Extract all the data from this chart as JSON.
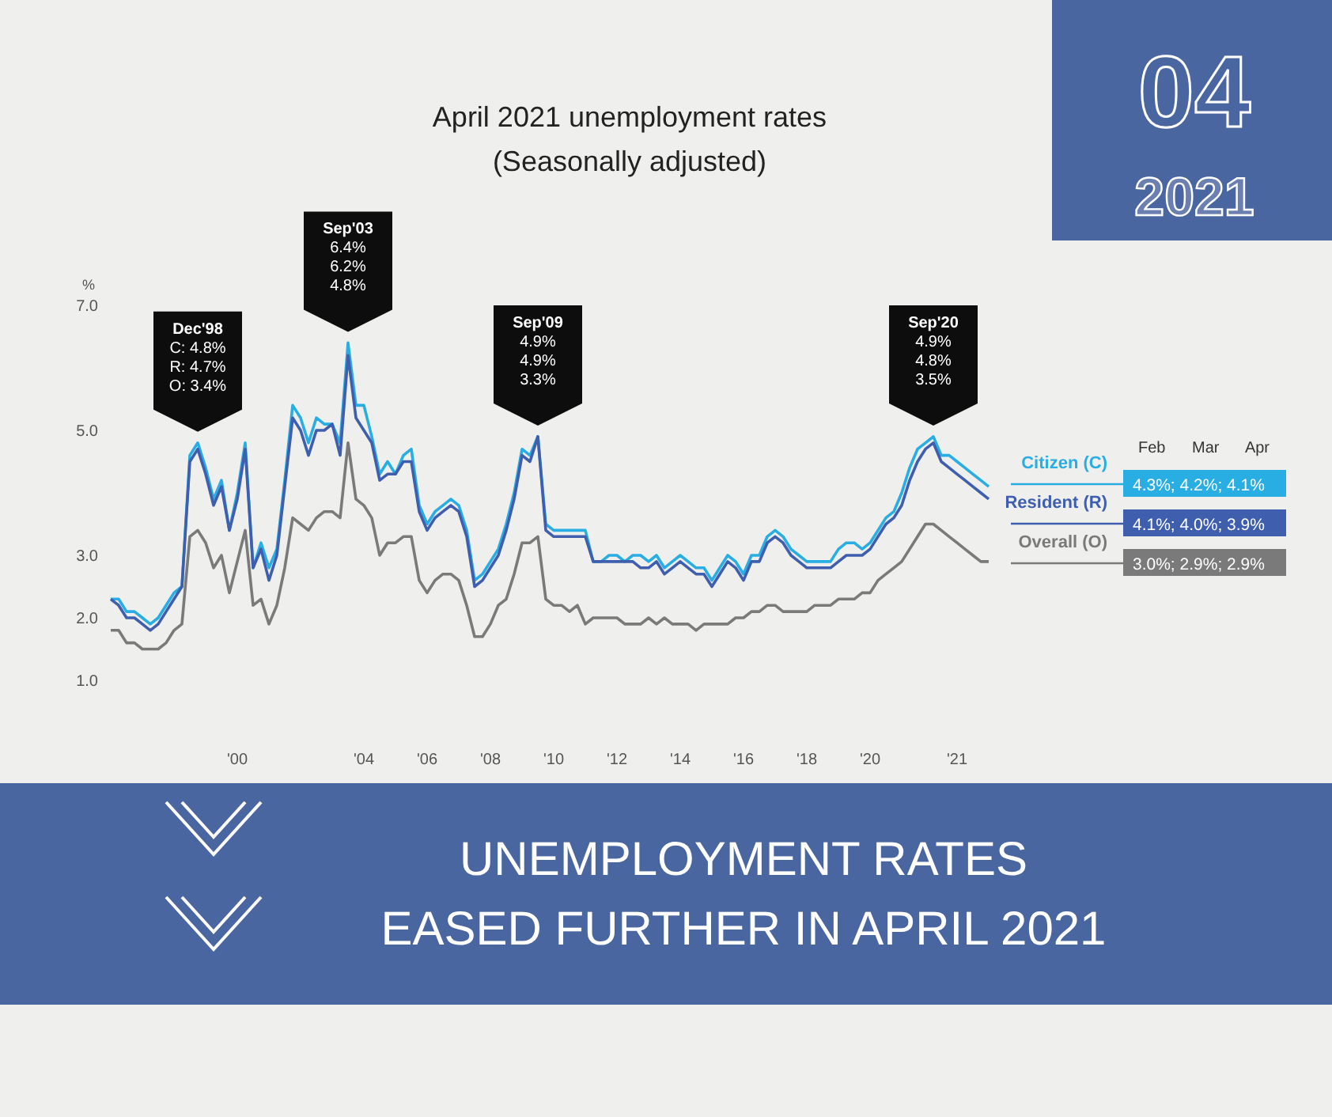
{
  "chart_data": {
    "type": "line",
    "title": "April 2021 unemployment rates\n(Seasonally adjusted)",
    "ylabel": "%",
    "categories": [
      null,
      null,
      null,
      null,
      null,
      null,
      null,
      null,
      null,
      null,
      null,
      null,
      null,
      null,
      null,
      null,
      "'00",
      null,
      null,
      null,
      null,
      null,
      null,
      null,
      null,
      null,
      null,
      null,
      null,
      null,
      null,
      null,
      "'04",
      null,
      null,
      null,
      null,
      null,
      null,
      null,
      "'06",
      null,
      null,
      null,
      null,
      null,
      null,
      null,
      "'08",
      null,
      null,
      null,
      null,
      null,
      null,
      null,
      "'10",
      null,
      null,
      null,
      null,
      null,
      null,
      null,
      "'12",
      null,
      null,
      null,
      null,
      null,
      null,
      null,
      "'14",
      null,
      null,
      null,
      null,
      null,
      null,
      null,
      "'16",
      null,
      null,
      null,
      null,
      null,
      null,
      null,
      "'18",
      null,
      null,
      null,
      null,
      null,
      null,
      null,
      "'20",
      null,
      null,
      null,
      null,
      null,
      null,
      null,
      null,
      null,
      null,
      "'21",
      null,
      null,
      null,
      null
    ],
    "series": [
      {
        "name": "Citizen (C)",
        "color": "#29aee3",
        "values": [
          2.3,
          2.3,
          2.1,
          2.1,
          2.0,
          1.9,
          2.0,
          2.2,
          2.4,
          2.5,
          4.6,
          4.8,
          4.4,
          3.9,
          4.2,
          3.4,
          4.0,
          4.8,
          2.8,
          3.2,
          2.8,
          3.1,
          4.2,
          5.4,
          5.2,
          4.8,
          5.2,
          5.1,
          5.1,
          4.8,
          6.4,
          5.4,
          5.4,
          4.9,
          4.3,
          4.5,
          4.3,
          4.6,
          4.7,
          3.8,
          3.5,
          3.7,
          3.8,
          3.9,
          3.8,
          3.4,
          2.6,
          2.7,
          2.9,
          3.1,
          3.5,
          4.0,
          4.7,
          4.6,
          4.9,
          3.5,
          3.4,
          3.4,
          3.4,
          3.4,
          3.4,
          2.9,
          2.9,
          3.0,
          3.0,
          2.9,
          3.0,
          3.0,
          2.9,
          3.0,
          2.8,
          2.9,
          3.0,
          2.9,
          2.8,
          2.8,
          2.6,
          2.8,
          3.0,
          2.9,
          2.7,
          3.0,
          3.0,
          3.3,
          3.4,
          3.3,
          3.1,
          3.0,
          2.9,
          2.9,
          2.9,
          2.9,
          3.1,
          3.2,
          3.2,
          3.1,
          3.2,
          3.4,
          3.6,
          3.7,
          4.0,
          4.4,
          4.7,
          4.8,
          4.9,
          4.6,
          4.6,
          4.5,
          4.4,
          4.3,
          4.2,
          4.1
        ]
      },
      {
        "name": "Resident (R)",
        "color": "#3f5fae",
        "values": [
          2.3,
          2.2,
          2.0,
          2.0,
          1.9,
          1.8,
          1.9,
          2.1,
          2.3,
          2.5,
          4.5,
          4.7,
          4.3,
          3.8,
          4.1,
          3.4,
          3.9,
          4.7,
          2.8,
          3.1,
          2.6,
          3.0,
          4.1,
          5.2,
          5.0,
          4.6,
          5.0,
          5.0,
          5.1,
          4.6,
          6.2,
          5.2,
          5.0,
          4.8,
          4.2,
          4.3,
          4.3,
          4.5,
          4.5,
          3.7,
          3.4,
          3.6,
          3.7,
          3.8,
          3.7,
          3.3,
          2.5,
          2.6,
          2.8,
          3.0,
          3.4,
          3.9,
          4.6,
          4.5,
          4.9,
          3.4,
          3.3,
          3.3,
          3.3,
          3.3,
          3.3,
          2.9,
          2.9,
          2.9,
          2.9,
          2.9,
          2.9,
          2.8,
          2.8,
          2.9,
          2.7,
          2.8,
          2.9,
          2.8,
          2.7,
          2.7,
          2.5,
          2.7,
          2.9,
          2.8,
          2.6,
          2.9,
          2.9,
          3.2,
          3.3,
          3.2,
          3.0,
          2.9,
          2.8,
          2.8,
          2.8,
          2.8,
          2.9,
          3.0,
          3.0,
          3.0,
          3.1,
          3.3,
          3.5,
          3.6,
          3.8,
          4.2,
          4.5,
          4.7,
          4.8,
          4.5,
          4.4,
          4.3,
          4.2,
          4.1,
          4.0,
          3.9
        ]
      },
      {
        "name": "Overall (O)",
        "color": "#7a7a7a",
        "values": [
          1.8,
          1.8,
          1.6,
          1.6,
          1.5,
          1.5,
          1.5,
          1.6,
          1.8,
          1.9,
          3.3,
          3.4,
          3.2,
          2.8,
          3.0,
          2.4,
          2.9,
          3.4,
          2.2,
          2.3,
          1.9,
          2.2,
          2.8,
          3.6,
          3.5,
          3.4,
          3.6,
          3.7,
          3.7,
          3.6,
          4.8,
          3.9,
          3.8,
          3.6,
          3.0,
          3.2,
          3.2,
          3.3,
          3.3,
          2.6,
          2.4,
          2.6,
          2.7,
          2.7,
          2.6,
          2.2,
          1.7,
          1.7,
          1.9,
          2.2,
          2.3,
          2.7,
          3.2,
          3.2,
          3.3,
          2.3,
          2.2,
          2.2,
          2.1,
          2.2,
          1.9,
          2.0,
          2.0,
          2.0,
          2.0,
          1.9,
          1.9,
          1.9,
          2.0,
          1.9,
          2.0,
          1.9,
          1.9,
          1.9,
          1.8,
          1.9,
          1.9,
          1.9,
          1.9,
          2.0,
          2.0,
          2.1,
          2.1,
          2.2,
          2.2,
          2.1,
          2.1,
          2.1,
          2.1,
          2.2,
          2.2,
          2.2,
          2.3,
          2.3,
          2.3,
          2.4,
          2.4,
          2.6,
          2.7,
          2.8,
          2.9,
          3.1,
          3.3,
          3.5,
          3.5,
          3.4,
          3.3,
          3.2,
          3.1,
          3.0,
          2.9,
          2.9
        ]
      }
    ],
    "ylim": [
      1,
      7
    ],
    "yticks": [
      {
        "value": 1,
        "label": "1.0"
      },
      {
        "value": 2,
        "label": "2.0"
      },
      {
        "value": 3,
        "label": "3.0"
      },
      {
        "value": 5,
        "label": "5.0"
      },
      {
        "value": 7,
        "label": "7.0"
      }
    ],
    "grid": false,
    "legend": false,
    "marker": "none",
    "line_style": "solid",
    "annotations": [
      "Dec'98\nC: 4.8%\nR: 4.7%\nO: 3.4%",
      "Sep'03\n6.4%\n6.2%\n4.8%",
      "Sep'09\n4.9%\n4.9%\n3.3%",
      "Sep'20\n4.9%\n4.8%\n3.5%",
      "Feb Mar Apr",
      "4.3%; 4.2%; 4.1%",
      "4.1%; 4.0%; 3.9%",
      "3.0%; 2.9%; 2.9%",
      "04",
      "2021",
      "UNEMPLOYMENT RATES\nEASED FURTHER IN APRIL 2021"
    ]
  }
}
